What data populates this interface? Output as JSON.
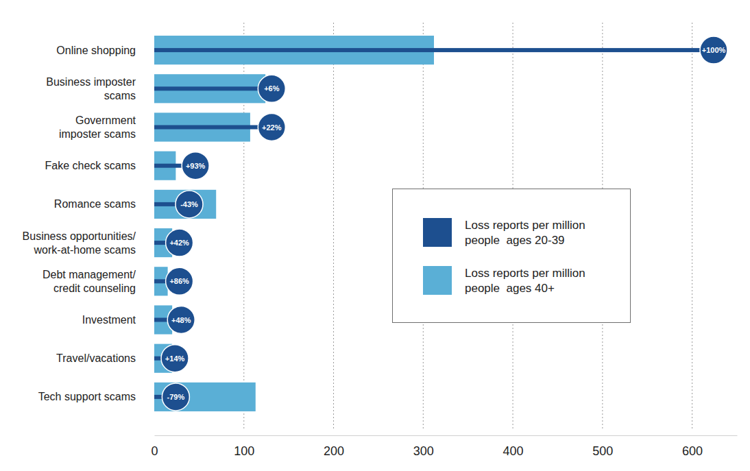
{
  "chart_data": {
    "type": "bar",
    "orientation": "horizontal",
    "categories": [
      "Online shopping",
      "Business imposter\nscams",
      "Government\nimposter scams",
      "Fake check scams",
      "Romance scams",
      "Business opportunities/\nwork-at-home scams",
      "Debt management/\ncredit counseling",
      "Investment",
      "Travel/vacations",
      "Tech support scams"
    ],
    "series": [
      {
        "name": "Loss reports per million\npeople  ages 20-39",
        "color": "#1d4f8f",
        "marker": "circle",
        "values": [
          624,
          131,
          131,
          46,
          39,
          28,
          28,
          30,
          23,
          24
        ],
        "point_labels": [
          "+100%",
          "+6%",
          "+22%",
          "+93%",
          "-43%",
          "+42%",
          "+86%",
          "+48%",
          "+14%",
          "-79%"
        ]
      },
      {
        "name": "Loss reports per million\npeople  ages 40+",
        "color": "#5aafd6",
        "values": [
          312,
          124,
          107,
          24,
          69,
          20,
          15,
          20,
          20,
          113
        ]
      }
    ],
    "xlim": [
      0,
      650
    ],
    "xticks": [
      0,
      100,
      200,
      300,
      400,
      500,
      600
    ],
    "grid": true,
    "legend": "right"
  }
}
